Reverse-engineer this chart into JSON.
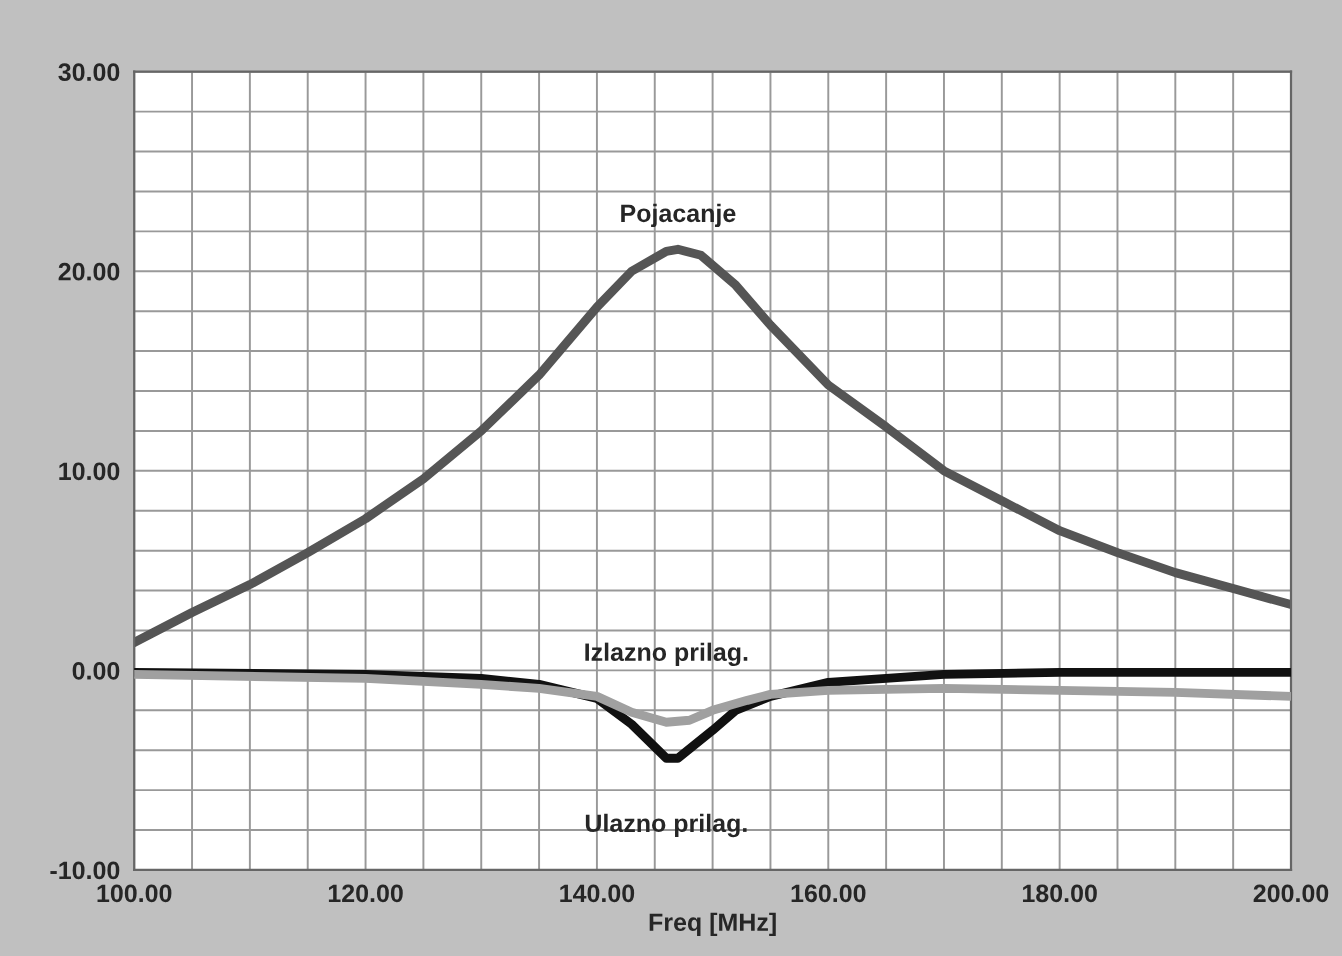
{
  "chart_data": {
    "type": "line",
    "xlabel": "Freq [MHz]",
    "x": [
      100,
      105,
      110,
      115,
      120,
      125,
      130,
      135,
      140,
      143,
      146,
      147,
      149,
      152,
      155,
      160,
      165,
      170,
      175,
      180,
      185,
      190,
      195,
      200
    ],
    "series": [
      {
        "name": "Pojacanje",
        "color": "#555555",
        "values": [
          1.4,
          2.9,
          4.3,
          5.9,
          7.6,
          9.6,
          12.0,
          14.8,
          18.2,
          20.0,
          21.0,
          21.1,
          20.8,
          19.3,
          17.3,
          14.3,
          12.2,
          10.0,
          8.5,
          7.0,
          5.9,
          4.9,
          4.1,
          3.3
        ]
      },
      {
        "name": "Izlazno prilag.",
        "color": "#a0a0a0",
        "x": [
          100,
          120,
          130,
          135,
          140,
          143,
          146,
          148,
          150,
          153,
          155,
          160,
          170,
          180,
          190,
          200
        ],
        "values": [
          -0.2,
          -0.4,
          -0.7,
          -0.9,
          -1.3,
          -2.1,
          -2.6,
          -2.5,
          -2.0,
          -1.5,
          -1.2,
          -1.0,
          -0.9,
          -1.0,
          -1.1,
          -1.3
        ]
      },
      {
        "name": "Ulazno prilag.",
        "color": "#111111",
        "x": [
          100,
          120,
          130,
          135,
          140,
          143,
          146,
          147,
          150,
          152,
          155,
          160,
          170,
          180,
          200
        ],
        "values": [
          -0.1,
          -0.2,
          -0.4,
          -0.7,
          -1.4,
          -2.7,
          -4.4,
          -4.4,
          -3.0,
          -2.0,
          -1.3,
          -0.6,
          -0.2,
          -0.1,
          -0.1
        ]
      }
    ],
    "xlim": [
      100,
      200
    ],
    "ylim": [
      -10,
      30
    ],
    "xticks": [
      {
        "value": 100,
        "label": "100.00"
      },
      {
        "value": 120,
        "label": "120.00"
      },
      {
        "value": 140,
        "label": "140.00"
      },
      {
        "value": 160,
        "label": "160.00"
      },
      {
        "value": 180,
        "label": "180.00"
      },
      {
        "value": 200,
        "label": "200.00"
      }
    ],
    "yticks": [
      {
        "value": -10,
        "label": "-10.00"
      },
      {
        "value": 0,
        "label": "0.00"
      },
      {
        "value": 10,
        "label": "10.00"
      },
      {
        "value": 20,
        "label": "20.00"
      },
      {
        "value": 30,
        "label": "30.00"
      }
    ],
    "grid": true,
    "marker": "none",
    "line_style": "solid"
  }
}
